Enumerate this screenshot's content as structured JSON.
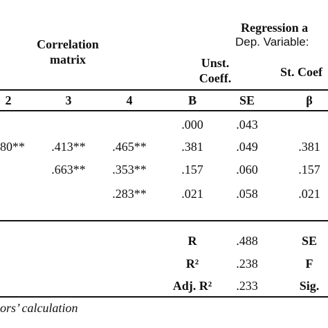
{
  "header": {
    "correlation": [
      "Correlation",
      "matrix"
    ],
    "regression": "Regression a",
    "dep_variable": "Dep. Variable: ",
    "unst": [
      "Unst.",
      "Coeff."
    ],
    "st": "St. Coef"
  },
  "table": {
    "columns": [
      "2",
      "3",
      "4",
      "B",
      "SE",
      "β"
    ],
    "rows": [
      [
        null,
        null,
        null,
        ".000",
        ".043",
        null
      ],
      [
        "80**",
        ".413**",
        ".465**",
        ".381",
        ".049",
        ".381"
      ],
      [
        null,
        ".663**",
        ".353**",
        ".157",
        ".060",
        ".157"
      ],
      [
        null,
        null,
        ".283**",
        ".021",
        ".058",
        ".021"
      ]
    ],
    "summary": [
      [
        "R",
        ".488",
        "SE"
      ],
      [
        "R²",
        ".238",
        "F"
      ],
      [
        "Adj. R²",
        ".233",
        "Sig."
      ]
    ]
  },
  "footer": "ors’ calculation"
}
